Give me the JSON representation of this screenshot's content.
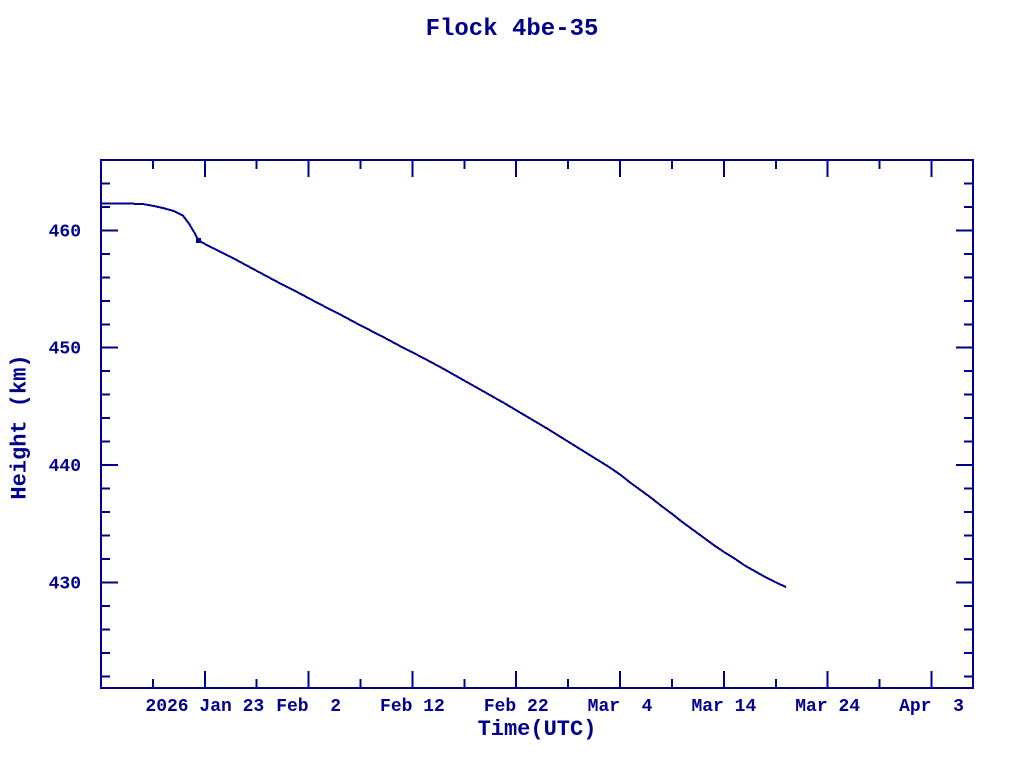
{
  "page": {
    "background": "#ffffff",
    "ink_color": "#00008B"
  },
  "chart_data": {
    "type": "line",
    "title": "Flock 4be-35",
    "xlabel": "Time(UTC)",
    "ylabel": "Height (km)",
    "grid": false,
    "legend": false,
    "x_day_reference": "day 10 = 2026 Jan 23",
    "xlim_days": [
      0,
      84
    ],
    "ylim": [
      421,
      466
    ],
    "x_major_ticks": [
      {
        "day": 10,
        "label": "2026 Jan 23"
      },
      {
        "day": 20,
        "label": "Feb  2"
      },
      {
        "day": 30,
        "label": "Feb 12"
      },
      {
        "day": 40,
        "label": "Feb 22"
      },
      {
        "day": 50,
        "label": "Mar  4"
      },
      {
        "day": 60,
        "label": "Mar 14"
      },
      {
        "day": 70,
        "label": "Mar 24"
      },
      {
        "day": 80,
        "label": "Apr  3"
      }
    ],
    "x_minor_ticks_days": [
      5,
      15,
      25,
      35,
      45,
      55,
      65,
      75
    ],
    "y_major_ticks": [
      430,
      440,
      450,
      460
    ],
    "y_minor_ticks": [
      422,
      424,
      426,
      428,
      432,
      434,
      436,
      438,
      442,
      444,
      446,
      448,
      452,
      454,
      456,
      458,
      462,
      464
    ],
    "series": [
      {
        "name": "Flock 4be-35 height",
        "color": "#00008B",
        "points_day_km": [
          [
            0,
            462.3
          ],
          [
            2,
            462.3
          ],
          [
            4,
            462.25
          ],
          [
            5,
            462.1
          ],
          [
            6,
            461.9
          ],
          [
            7,
            461.65
          ],
          [
            7.9,
            461.25
          ],
          [
            8.5,
            460.55
          ],
          [
            9.0,
            459.8
          ],
          [
            9.4,
            459.15
          ],
          [
            10,
            458.85
          ],
          [
            11,
            458.4
          ],
          [
            13,
            457.5
          ],
          [
            15,
            456.55
          ],
          [
            17,
            455.6
          ],
          [
            19,
            454.7
          ],
          [
            21,
            453.75
          ],
          [
            23,
            452.85
          ],
          [
            25,
            451.9
          ],
          [
            27,
            451.0
          ],
          [
            29,
            450.05
          ],
          [
            31,
            449.15
          ],
          [
            33,
            448.2
          ],
          [
            35,
            447.2
          ],
          [
            37,
            446.2
          ],
          [
            39,
            445.2
          ],
          [
            41,
            444.15
          ],
          [
            43,
            443.1
          ],
          [
            45,
            442.0
          ],
          [
            47,
            440.9
          ],
          [
            49,
            439.8
          ],
          [
            50,
            439.2
          ],
          [
            51,
            438.5
          ],
          [
            52,
            437.85
          ],
          [
            53,
            437.2
          ],
          [
            54,
            436.5
          ],
          [
            55,
            435.85
          ],
          [
            56,
            435.15
          ],
          [
            57,
            434.5
          ],
          [
            58,
            433.85
          ],
          [
            59,
            433.2
          ],
          [
            60,
            432.6
          ],
          [
            61,
            432.05
          ],
          [
            62,
            431.45
          ],
          [
            63,
            430.95
          ],
          [
            64,
            430.45
          ],
          [
            65,
            430.0
          ],
          [
            66,
            429.6
          ]
        ]
      }
    ],
    "point_marker": {
      "day": 9.4,
      "km": 459.15
    }
  }
}
